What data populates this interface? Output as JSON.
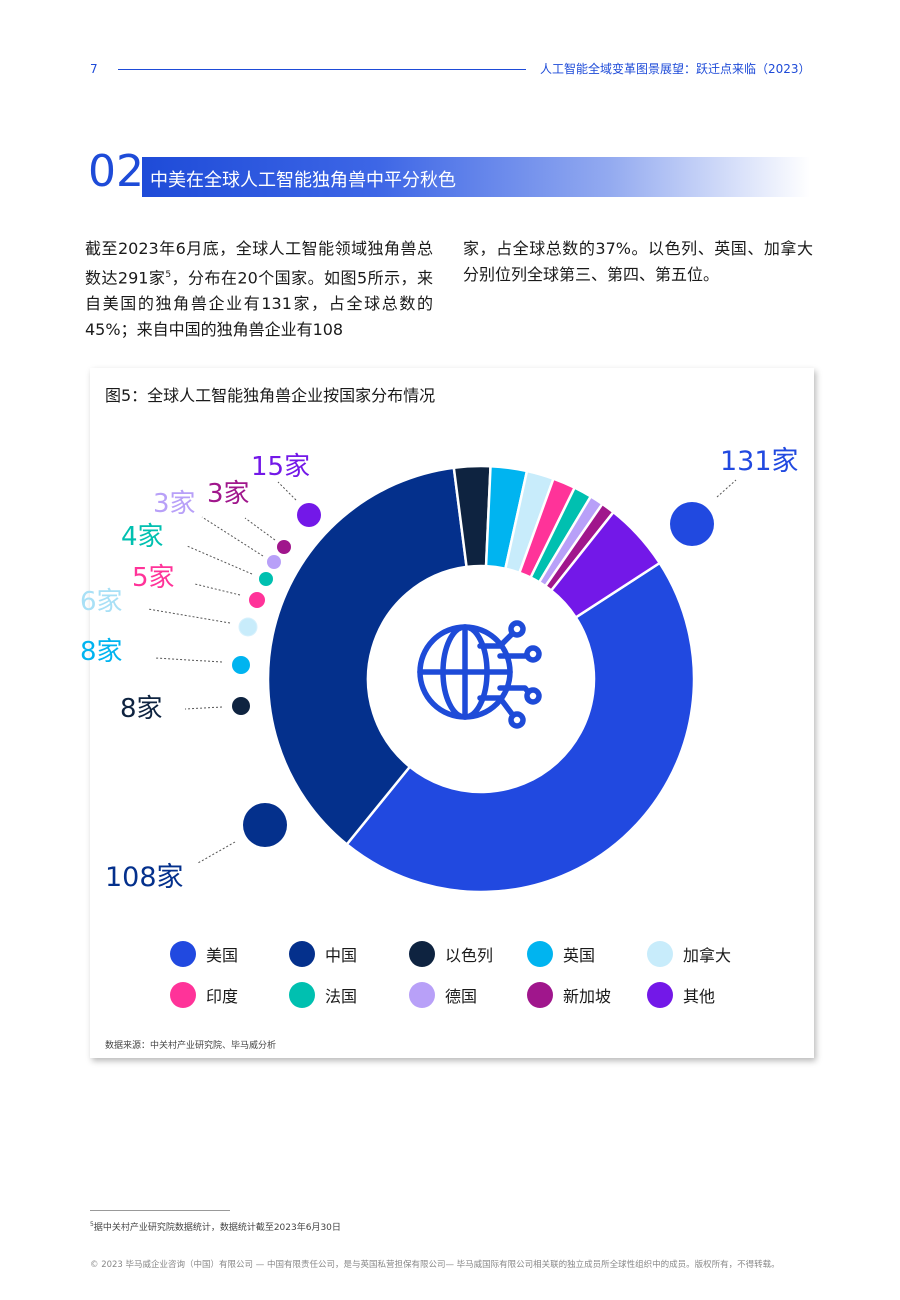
{
  "header": {
    "page_number": "7",
    "running_title": "人工智能全域变革图景展望：跃迁点来临（2023）"
  },
  "section": {
    "number": "02",
    "title": "中美在全球人工智能独角兽中平分秋色"
  },
  "body": {
    "left_text_1": "截至2023年6月底，全球人工智能领域独角兽总数达291家",
    "footnote_ref": "5",
    "left_text_2": "，分布在20个国家。如图5所示，来自美国的独角兽企业有131家，占全球总数的45%；来自中国的独角兽企业有108",
    "right_text": "家，占全球总数的37%。以色列、英国、加拿大分别位列全球第三、第四、第五位。"
  },
  "figure": {
    "title": "图5：全球人工智能独角兽企业按国家分布情况",
    "source": "数据来源：中关村产业研究院、毕马威分析",
    "center_icon": "globe-network-icon"
  },
  "chart_data": {
    "type": "pie",
    "title": "图5：全球人工智能独角兽企业按国家分布情况",
    "donut": true,
    "unit": "家",
    "categories": [
      "美国",
      "中国",
      "以色列",
      "英国",
      "加拿大",
      "印度",
      "法国",
      "德国",
      "新加坡",
      "其他"
    ],
    "values": [
      131,
      108,
      8,
      8,
      6,
      5,
      4,
      3,
      3,
      15
    ],
    "data_labels": [
      "131家",
      "108家",
      "8家",
      "8家",
      "6家",
      "5家",
      "4家",
      "3家",
      "3家",
      "15家"
    ],
    "colors": [
      "#2149e0",
      "#04308c",
      "#0e2340",
      "#00b4f0",
      "#c8ecfb",
      "#ff3399",
      "#00c0b0",
      "#b8a0f8",
      "#a0168c",
      "#7318e8"
    ],
    "legend": "bottom"
  },
  "footnote": {
    "marker": "5",
    "text": "据中关村产业研究院数据统计，数据统计截至2023年6月30日"
  },
  "copyright": "© 2023 毕马威企业咨询（中国）有限公司 — 中国有限责任公司，是与英国私营担保有限公司— 毕马威国际有限公司相关联的独立成员所全球性组织中的成员。版权所有，不得转载。"
}
